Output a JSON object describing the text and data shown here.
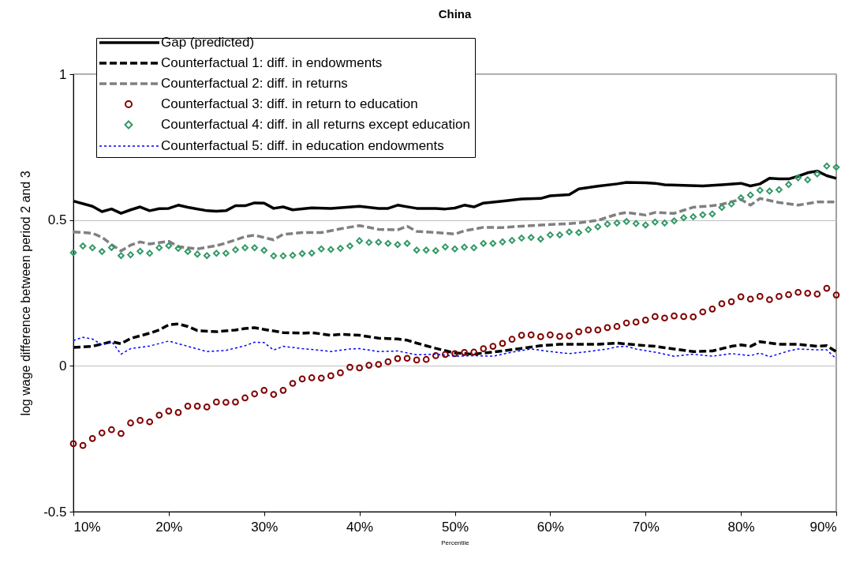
{
  "chart_data": {
    "type": "line",
    "title": "China",
    "xlabel": "Percentile",
    "ylabel": "log wage difference between period 2 and 3",
    "x": [
      10,
      11,
      12,
      13,
      14,
      15,
      16,
      17,
      18,
      19,
      20,
      21,
      22,
      23,
      24,
      25,
      26,
      27,
      28,
      29,
      30,
      31,
      32,
      33,
      34,
      35,
      36,
      37,
      38,
      39,
      40,
      41,
      42,
      43,
      44,
      45,
      46,
      47,
      48,
      49,
      50,
      51,
      52,
      53,
      54,
      55,
      56,
      57,
      58,
      59,
      60,
      61,
      62,
      63,
      64,
      65,
      66,
      67,
      68,
      69,
      70,
      71,
      72,
      73,
      74,
      75,
      76,
      77,
      78,
      79,
      80,
      81,
      82,
      83,
      84,
      85,
      86,
      87,
      88,
      89,
      90
    ],
    "xlim": [
      10,
      90
    ],
    "xticks": [
      {
        "value": 10,
        "label": "10%"
      },
      {
        "value": 20,
        "label": "20%"
      },
      {
        "value": 30,
        "label": "30%"
      },
      {
        "value": 40,
        "label": "40%"
      },
      {
        "value": 50,
        "label": "50%"
      },
      {
        "value": 60,
        "label": "60%"
      },
      {
        "value": 70,
        "label": "70%"
      },
      {
        "value": 80,
        "label": "80%"
      },
      {
        "value": 90,
        "label": "90%"
      }
    ],
    "ylim": [
      -0.5,
      1
    ],
    "yticks": [
      -0.5,
      0,
      0.5,
      1
    ],
    "grid": "y",
    "legend": "top left",
    "series": [
      {
        "name": "Gap (predicted)",
        "color": "#000000",
        "line_style": "solid",
        "marker": "none",
        "x": [
          10,
          12,
          13,
          14,
          15,
          16,
          17,
          18,
          19,
          20,
          21,
          22,
          24,
          25,
          26,
          27,
          28,
          29,
          30,
          31,
          32,
          33,
          35,
          37,
          40,
          42,
          43,
          44,
          46,
          48,
          49,
          50,
          51,
          52,
          53,
          55,
          57,
          59,
          60,
          62,
          63,
          65,
          67,
          68,
          70,
          71,
          72,
          74,
          76,
          78,
          80,
          81,
          82,
          83,
          84,
          85,
          86,
          87,
          88,
          89,
          90
        ],
        "values": [
          0.565,
          0.547,
          0.529,
          0.538,
          0.523,
          0.535,
          0.545,
          0.532,
          0.539,
          0.54,
          0.551,
          0.544,
          0.532,
          0.53,
          0.532,
          0.549,
          0.549,
          0.559,
          0.558,
          0.54,
          0.545,
          0.535,
          0.542,
          0.54,
          0.547,
          0.54,
          0.54,
          0.551,
          0.54,
          0.54,
          0.538,
          0.541,
          0.551,
          0.545,
          0.558,
          0.565,
          0.572,
          0.574,
          0.583,
          0.587,
          0.607,
          0.616,
          0.624,
          0.629,
          0.628,
          0.626,
          0.621,
          0.619,
          0.617,
          0.621,
          0.626,
          0.617,
          0.624,
          0.643,
          0.641,
          0.641,
          0.65,
          0.662,
          0.668,
          0.652,
          0.643
        ]
      },
      {
        "name": "Counterfactual 1: diff. in endowments",
        "color": "#000000",
        "line_style": "dashed",
        "marker": "none",
        "x": [
          10,
          12,
          14,
          15,
          16,
          18,
          19,
          20,
          21,
          22,
          23,
          25,
          27,
          28,
          29,
          30,
          32,
          34,
          35,
          37,
          38,
          40,
          42,
          44,
          45,
          46,
          48,
          50,
          52,
          53,
          55,
          57,
          59,
          61,
          63,
          65,
          67,
          69,
          71,
          73,
          75,
          77,
          79,
          80,
          81,
          82,
          84,
          86,
          88,
          89,
          90
        ],
        "values": [
          0.063,
          0.067,
          0.083,
          0.076,
          0.094,
          0.112,
          0.123,
          0.141,
          0.144,
          0.135,
          0.121,
          0.117,
          0.123,
          0.128,
          0.131,
          0.125,
          0.114,
          0.112,
          0.114,
          0.105,
          0.108,
          0.105,
          0.095,
          0.092,
          0.088,
          0.078,
          0.06,
          0.044,
          0.04,
          0.044,
          0.051,
          0.06,
          0.069,
          0.074,
          0.074,
          0.074,
          0.078,
          0.072,
          0.067,
          0.058,
          0.049,
          0.051,
          0.067,
          0.072,
          0.067,
          0.083,
          0.074,
          0.074,
          0.067,
          0.069,
          0.049
        ]
      },
      {
        "name": "Counterfactual 2: diff. in returns",
        "color": "#808080",
        "line_style": "dashed",
        "marker": "none",
        "x": [
          10,
          12,
          13,
          14,
          15,
          16,
          17,
          18,
          20,
          21,
          23,
          25,
          26,
          28,
          29,
          31,
          32,
          34,
          36,
          38,
          40,
          42,
          44,
          45,
          46,
          48,
          50,
          51,
          53,
          55,
          57,
          59,
          61,
          63,
          65,
          67,
          68,
          70,
          71,
          73,
          75,
          77,
          78,
          80,
          81,
          82,
          84,
          86,
          88,
          90
        ],
        "values": [
          0.459,
          0.455,
          0.441,
          0.416,
          0.394,
          0.414,
          0.425,
          0.418,
          0.427,
          0.409,
          0.401,
          0.412,
          0.421,
          0.443,
          0.448,
          0.432,
          0.451,
          0.457,
          0.457,
          0.47,
          0.481,
          0.468,
          0.466,
          0.479,
          0.461,
          0.457,
          0.452,
          0.463,
          0.475,
          0.474,
          0.479,
          0.483,
          0.486,
          0.49,
          0.499,
          0.52,
          0.526,
          0.517,
          0.526,
          0.523,
          0.544,
          0.549,
          0.554,
          0.571,
          0.551,
          0.574,
          0.56,
          0.551,
          0.562,
          0.562
        ]
      },
      {
        "name": "Counterfactual 3: diff. in return to education",
        "type": "scatter",
        "color": "#800000",
        "marker": "circle",
        "values": [
          -0.267,
          -0.273,
          -0.249,
          -0.23,
          -0.219,
          -0.232,
          -0.196,
          -0.187,
          -0.192,
          -0.169,
          -0.155,
          -0.16,
          -0.138,
          -0.138,
          -0.141,
          -0.124,
          -0.125,
          -0.124,
          -0.11,
          -0.096,
          -0.084,
          -0.098,
          -0.084,
          -0.06,
          -0.045,
          -0.041,
          -0.042,
          -0.034,
          -0.024,
          -0.005,
          -0.007,
          0.002,
          0.005,
          0.014,
          0.025,
          0.026,
          0.02,
          0.022,
          0.035,
          0.039,
          0.042,
          0.046,
          0.047,
          0.059,
          0.067,
          0.077,
          0.091,
          0.105,
          0.106,
          0.1,
          0.106,
          0.101,
          0.103,
          0.117,
          0.123,
          0.123,
          0.131,
          0.135,
          0.147,
          0.15,
          0.157,
          0.169,
          0.164,
          0.171,
          0.169,
          0.168,
          0.185,
          0.195,
          0.213,
          0.22,
          0.237,
          0.229,
          0.238,
          0.227,
          0.238,
          0.244,
          0.252,
          0.249,
          0.246,
          0.266,
          0.243
        ]
      },
      {
        "name": "Counterfactual 4: diff. in all returns except education",
        "type": "scatter",
        "color": "#339966",
        "marker": "diamond",
        "values": [
          0.388,
          0.411,
          0.405,
          0.392,
          0.406,
          0.378,
          0.381,
          0.393,
          0.386,
          0.405,
          0.412,
          0.403,
          0.392,
          0.383,
          0.378,
          0.386,
          0.386,
          0.398,
          0.405,
          0.405,
          0.396,
          0.377,
          0.377,
          0.379,
          0.385,
          0.387,
          0.401,
          0.399,
          0.403,
          0.411,
          0.429,
          0.423,
          0.424,
          0.42,
          0.416,
          0.42,
          0.397,
          0.397,
          0.395,
          0.408,
          0.401,
          0.407,
          0.405,
          0.42,
          0.42,
          0.425,
          0.43,
          0.438,
          0.44,
          0.435,
          0.449,
          0.449,
          0.459,
          0.457,
          0.467,
          0.477,
          0.486,
          0.49,
          0.495,
          0.488,
          0.483,
          0.493,
          0.49,
          0.497,
          0.508,
          0.511,
          0.518,
          0.521,
          0.543,
          0.555,
          0.576,
          0.586,
          0.602,
          0.599,
          0.604,
          0.622,
          0.645,
          0.638,
          0.658,
          0.685,
          0.681
        ]
      },
      {
        "name": "Counterfactual 5: diff. in education endowments",
        "color": "#0000ff",
        "line_style": "dotted",
        "marker": "none",
        "x": [
          10,
          11,
          12,
          13,
          14,
          15,
          16,
          18,
          20,
          22,
          24,
          26,
          28,
          29,
          30,
          31,
          32,
          34,
          36,
          37,
          39,
          40,
          42,
          44,
          46,
          48,
          50,
          52,
          54,
          56,
          58,
          60,
          62,
          64,
          66,
          67,
          68,
          69,
          71,
          73,
          75,
          77,
          79,
          81,
          82,
          83,
          85,
          86,
          88,
          89,
          90
        ],
        "values": [
          0.087,
          0.098,
          0.092,
          0.072,
          0.084,
          0.04,
          0.059,
          0.068,
          0.085,
          0.067,
          0.049,
          0.053,
          0.069,
          0.081,
          0.08,
          0.054,
          0.067,
          0.059,
          0.053,
          0.049,
          0.058,
          0.059,
          0.049,
          0.051,
          0.038,
          0.04,
          0.033,
          0.035,
          0.033,
          0.047,
          0.058,
          0.049,
          0.042,
          0.049,
          0.058,
          0.065,
          0.067,
          0.058,
          0.047,
          0.033,
          0.04,
          0.033,
          0.042,
          0.035,
          0.044,
          0.031,
          0.051,
          0.058,
          0.055,
          0.055,
          0.024
        ]
      }
    ]
  }
}
